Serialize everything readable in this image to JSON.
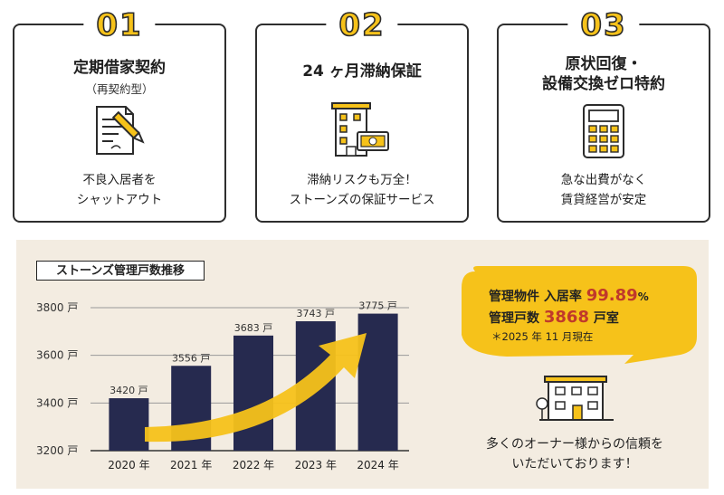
{
  "cards": [
    {
      "number": "01",
      "title_lines": [
        "定期借家契約"
      ],
      "subtitle": "（再契約型）",
      "icon": "contract-pen-icon",
      "desc_lines": [
        "不良入居者を",
        "シャットアウト"
      ]
    },
    {
      "number": "02",
      "title_lines": [
        "24 ヶ月滞納保証"
      ],
      "icon": "building-money-icon",
      "desc_lines": [
        "滞納リスクも万全！",
        "ストーンズの保証サービス"
      ]
    },
    {
      "number": "03",
      "title_lines": [
        "原状回復・",
        "設備交換ゼロ特約"
      ],
      "icon": "calculator-icon",
      "desc_lines": [
        "急な出費がなく",
        "賃貸経営が安定"
      ]
    }
  ],
  "chart_title": "ストーンズ管理戸数推移",
  "chart_data": {
    "type": "bar",
    "title": "ストーンズ管理戸数推移",
    "categories": [
      "2020 年",
      "2021 年",
      "2022 年",
      "2023 年",
      "2024 年"
    ],
    "values": [
      3420,
      3556,
      3683,
      3743,
      3775
    ],
    "value_labels": [
      "3420 戸",
      "3556 戸",
      "3683 戸",
      "3743 戸",
      "3775 戸"
    ],
    "ylim": [
      3200,
      3800
    ],
    "yticks": [
      3200,
      3400,
      3600,
      3800
    ],
    "ytick_labels": [
      "3200 戸",
      "3400 戸",
      "3600 戸",
      "3800 戸"
    ],
    "grid": true,
    "bar_color": "#262a4f",
    "trend_arrow_color": "#f6c21a"
  },
  "highlight": {
    "label1": "管理物件 入居率",
    "value1": "99.89",
    "unit1": "%",
    "label2": "管理戸数",
    "value2": "3868",
    "unit2": "戸室",
    "note": "＊2025 年 11 月現在",
    "bubble_color": "#f6c21a",
    "value_color": "#c0392b"
  },
  "trust_icon": "apartment-building-icon",
  "trust_lines": [
    "多くのオーナー様からの信頼を",
    "いただいております！"
  ]
}
